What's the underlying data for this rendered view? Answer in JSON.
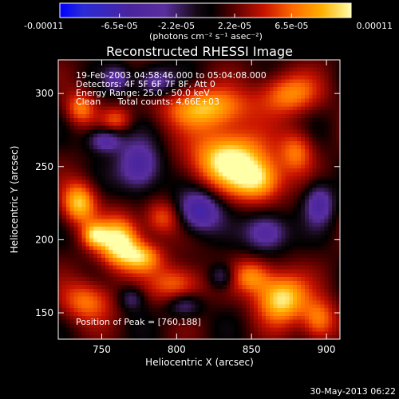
{
  "chart_data": {
    "type": "heatmap",
    "title": "Reconstructed RHESSI Image",
    "xlabel": "Heliocentric X (arcsec)",
    "ylabel": "Heliocentric Y (arcsec)",
    "xlim": [
      721,
      909
    ],
    "ylim": [
      132,
      323
    ],
    "xticks": [
      750,
      800,
      850,
      900
    ],
    "yticks": [
      150,
      200,
      250,
      300
    ],
    "colorbar": {
      "range": [
        -0.00011,
        0.00011
      ],
      "ticks": [
        -0.00011,
        -6.5e-05,
        -2.2e-05,
        2.2e-05,
        6.5e-05,
        0.00011
      ],
      "tick_labels": [
        "-0.00011",
        "-6.5e-05",
        "-2.2e-05",
        "2.2e-05",
        "6.5e-05",
        "0.00011"
      ],
      "unit_label": "(photons cm⁻² s⁻¹ asec⁻²)",
      "colors": [
        "#0000ff",
        "#2a2bd0",
        "#3f1a9c",
        "#5b2ea6",
        "#1a0a1a",
        "#400000",
        "#c81200",
        "#ff6a00",
        "#ffb000",
        "#ffff9a"
      ]
    },
    "annotations": {
      "time_range": "19-Feb-2003 04:58:46.000 to 05:04:08.000",
      "detectors": "Detectors: 4F 5F 6F 7F 8F, Att 0",
      "energy": "Energy Range: 25.0 - 50.0 keV",
      "clean": "Clean      Total counts: 4.66E+03",
      "peak": "Position of Peak = [760,188]"
    },
    "peak": [
      760,
      188
    ],
    "blobs": [
      {
        "x": 762,
        "y": 198,
        "sx": 10,
        "sy": 12,
        "a": 1.0
      },
      {
        "x": 745,
        "y": 203,
        "sx": 6,
        "sy": 6,
        "a": 0.6
      },
      {
        "x": 735,
        "y": 225,
        "sx": 8,
        "sy": 10,
        "a": 0.8
      },
      {
        "x": 778,
        "y": 188,
        "sx": 9,
        "sy": 7,
        "a": 0.6
      },
      {
        "x": 835,
        "y": 255,
        "sx": 18,
        "sy": 14,
        "a": 0.95
      },
      {
        "x": 855,
        "y": 240,
        "sx": 12,
        "sy": 10,
        "a": 0.7
      },
      {
        "x": 820,
        "y": 290,
        "sx": 20,
        "sy": 10,
        "a": 0.75
      },
      {
        "x": 875,
        "y": 300,
        "sx": 14,
        "sy": 10,
        "a": 0.6
      },
      {
        "x": 880,
        "y": 260,
        "sx": 8,
        "sy": 10,
        "a": 0.5
      },
      {
        "x": 870,
        "y": 160,
        "sx": 12,
        "sy": 12,
        "a": 0.9
      },
      {
        "x": 895,
        "y": 145,
        "sx": 8,
        "sy": 10,
        "a": 0.6
      },
      {
        "x": 850,
        "y": 175,
        "sx": 9,
        "sy": 8,
        "a": 0.55
      },
      {
        "x": 800,
        "y": 170,
        "sx": 12,
        "sy": 9,
        "a": 0.55
      },
      {
        "x": 740,
        "y": 158,
        "sx": 12,
        "sy": 10,
        "a": 0.55
      },
      {
        "x": 790,
        "y": 215,
        "sx": 8,
        "sy": 8,
        "a": 0.45
      },
      {
        "x": 760,
        "y": 282,
        "sx": 7,
        "sy": 6,
        "a": 0.4
      },
      {
        "x": 736,
        "y": 290,
        "sx": 7,
        "sy": 8,
        "a": 0.55
      },
      {
        "x": 815,
        "y": 220,
        "sx": 10,
        "sy": 10,
        "a": -0.7
      },
      {
        "x": 775,
        "y": 250,
        "sx": 10,
        "sy": 12,
        "a": -0.65
      },
      {
        "x": 752,
        "y": 268,
        "sx": 8,
        "sy": 6,
        "a": -0.55
      },
      {
        "x": 860,
        "y": 205,
        "sx": 10,
        "sy": 9,
        "a": -0.6
      },
      {
        "x": 895,
        "y": 225,
        "sx": 7,
        "sy": 10,
        "a": -0.55
      },
      {
        "x": 785,
        "y": 308,
        "sx": 10,
        "sy": 7,
        "a": -0.5
      },
      {
        "x": 760,
        "y": 310,
        "sx": 6,
        "sy": 6,
        "a": -0.4
      },
      {
        "x": 805,
        "y": 155,
        "sx": 8,
        "sy": 6,
        "a": -0.4
      },
      {
        "x": 770,
        "y": 160,
        "sx": 6,
        "sy": 6,
        "a": -0.35
      },
      {
        "x": 830,
        "y": 175,
        "sx": 6,
        "sy": 6,
        "a": -0.4
      }
    ]
  },
  "footer": {
    "date": "30-May-2013 06:22"
  }
}
